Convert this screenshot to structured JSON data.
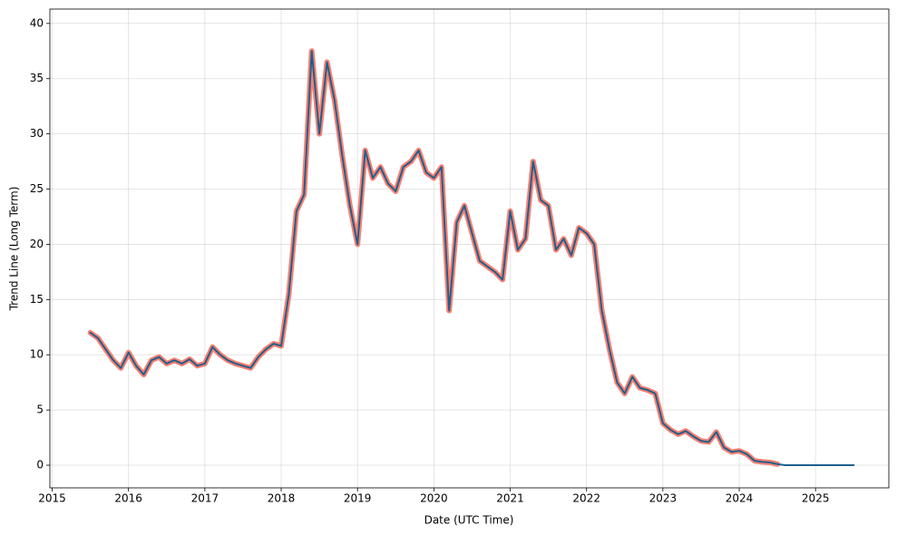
{
  "chart_data": {
    "type": "line",
    "xlabel": "Date (UTC Time)",
    "ylabel": "Trend Line (Long Term)",
    "x": [
      2015.5,
      2015.6,
      2015.7,
      2015.8,
      2015.9,
      2016.0,
      2016.1,
      2016.2,
      2016.3,
      2016.4,
      2016.5,
      2016.6,
      2016.7,
      2016.8,
      2016.9,
      2017.0,
      2017.1,
      2017.2,
      2017.3,
      2017.4,
      2017.5,
      2017.6,
      2017.7,
      2017.8,
      2017.9,
      2018.0,
      2018.1,
      2018.2,
      2018.3,
      2018.4,
      2018.5,
      2018.6,
      2018.7,
      2018.8,
      2018.9,
      2019.0,
      2019.1,
      2019.2,
      2019.3,
      2019.4,
      2019.5,
      2019.6,
      2019.7,
      2019.8,
      2019.9,
      2020.0,
      2020.1,
      2020.2,
      2020.3,
      2020.4,
      2020.5,
      2020.6,
      2020.7,
      2020.8,
      2020.9,
      2021.0,
      2021.1,
      2021.2,
      2021.3,
      2021.4,
      2021.5,
      2021.6,
      2021.7,
      2021.8,
      2021.9,
      2022.0,
      2022.1,
      2022.2,
      2022.3,
      2022.4,
      2022.5,
      2022.6,
      2022.7,
      2022.8,
      2022.9,
      2023.0,
      2023.1,
      2023.2,
      2023.3,
      2023.4,
      2023.5,
      2023.6,
      2023.7,
      2023.8,
      2023.9,
      2024.0,
      2024.1,
      2024.2,
      2024.3,
      2024.4,
      2024.5,
      2024.6,
      2025.5
    ],
    "series": [
      {
        "color": "#fa8072",
        "values": [
          12,
          11.5,
          10.5,
          9.5,
          8.8,
          10.2,
          9,
          8.2,
          9.5,
          9.8,
          9.2,
          9.5,
          9.2,
          9.6,
          9,
          9.2,
          10.7,
          10,
          9.5,
          9.2,
          9,
          8.8,
          9.8,
          10.5,
          11,
          10.8,
          15.5,
          23,
          24.5,
          37.5,
          30,
          36.5,
          33,
          28,
          23.5,
          20,
          28.5,
          26,
          27,
          25.5,
          24.8,
          27,
          27.5,
          28.5,
          26.5,
          26,
          27,
          14,
          22,
          23.5,
          21,
          18.5,
          18,
          17.5,
          16.8,
          23,
          19.5,
          20.5,
          27.5,
          24,
          23.5,
          19.5,
          20.5,
          19,
          21.5,
          21,
          20,
          14,
          10.5,
          7.5,
          6.5,
          8,
          7,
          6.8,
          6.5,
          3.8,
          3.2,
          2.8,
          3.1,
          2.6,
          2.2,
          2.1,
          3,
          1.6,
          1.2,
          1.3,
          1,
          0.4,
          0.3,
          0.25,
          0.1,
          null,
          null
        ]
      },
      {
        "color": "#1f5f8b",
        "values": [
          12,
          11.5,
          10.5,
          9.5,
          8.8,
          10.2,
          9,
          8.2,
          9.5,
          9.8,
          9.2,
          9.5,
          9.2,
          9.6,
          9,
          9.2,
          10.7,
          10,
          9.5,
          9.2,
          9,
          8.8,
          9.8,
          10.5,
          11,
          10.8,
          15.5,
          23,
          24.5,
          37.5,
          30,
          36.5,
          33,
          28,
          23.5,
          20,
          28.5,
          26,
          27,
          25.5,
          24.8,
          27,
          27.5,
          28.5,
          26.5,
          26,
          27,
          14,
          22,
          23.5,
          21,
          18.5,
          18,
          17.5,
          16.8,
          23,
          19.5,
          20.5,
          27.5,
          24,
          23.5,
          19.5,
          20.5,
          19,
          21.5,
          21,
          20,
          14,
          10.5,
          7.5,
          6.5,
          8,
          7,
          6.8,
          6.5,
          3.8,
          3.2,
          2.8,
          3.1,
          2.6,
          2.2,
          2.1,
          3,
          1.6,
          1.2,
          1.3,
          1,
          0.4,
          0.3,
          0.25,
          0.1,
          0,
          0
        ]
      }
    ],
    "xlim": [
      2014.97,
      2025.96
    ],
    "ylim": [
      -2.05,
      41.3
    ],
    "xticks": [
      2015,
      2016,
      2017,
      2018,
      2019,
      2020,
      2021,
      2022,
      2023,
      2024,
      2025
    ],
    "yticks": [
      0,
      5,
      10,
      15,
      20,
      25,
      30,
      35,
      40
    ],
    "grid": true
  }
}
